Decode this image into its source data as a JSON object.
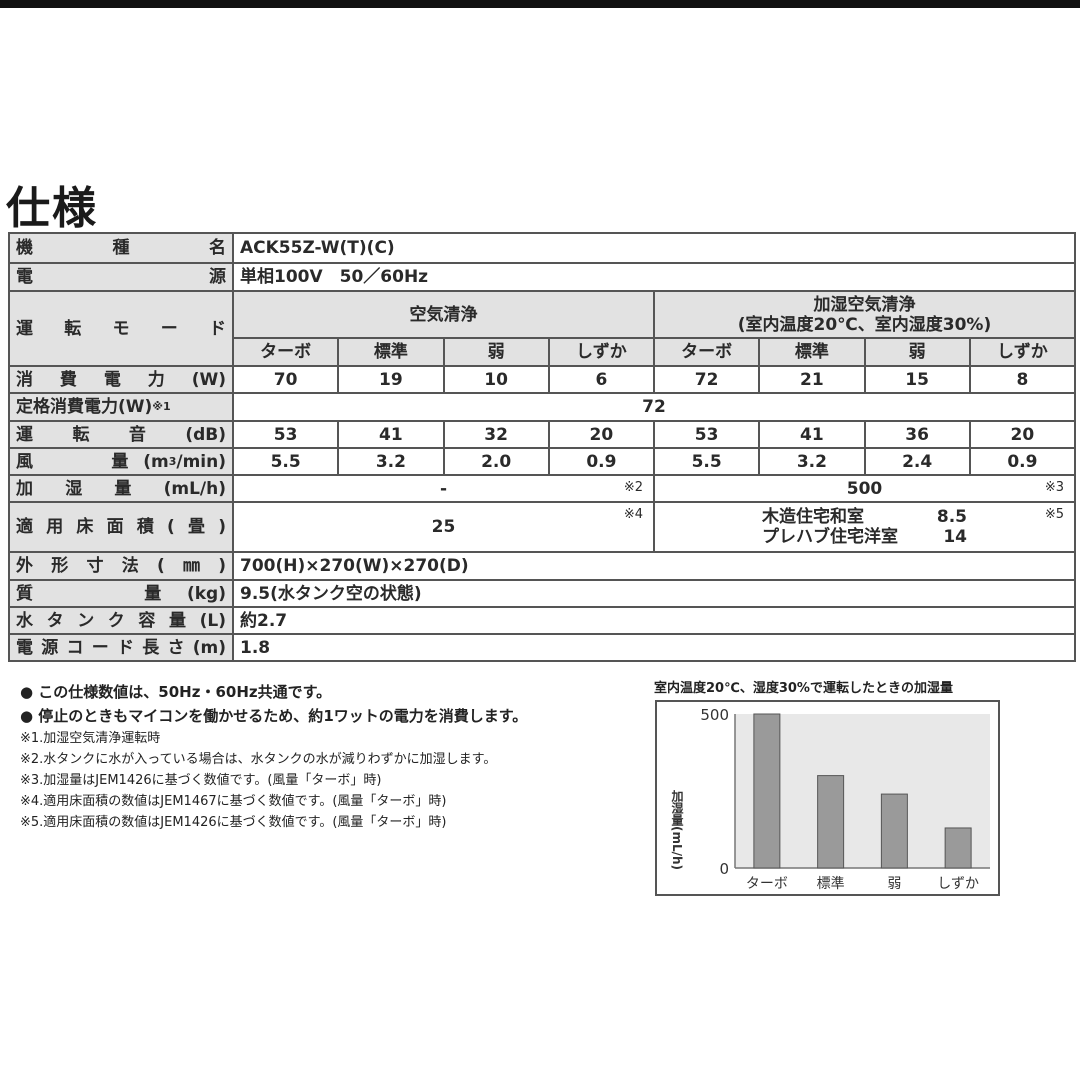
{
  "title": "仕様",
  "spec": {
    "model": {
      "label": "機　種　名",
      "value": "ACK55Z-W(T)(C)"
    },
    "power_source": {
      "label": "電　源",
      "value": "単相100V　50／60Hz"
    },
    "mode": {
      "label": "運　転　モ　ー　ド",
      "group1": "空気清浄",
      "group2_line1": "加湿空気清浄",
      "group2_line2": "(室内温度20℃、室内湿度30%)",
      "sub": [
        "ターボ",
        "標準",
        "弱",
        "しずか",
        "ターボ",
        "標準",
        "弱",
        "しずか"
      ]
    },
    "power_consumption": {
      "label": "消費電力(W)",
      "values": [
        "70",
        "19",
        "10",
        "6",
        "72",
        "21",
        "15",
        "8"
      ]
    },
    "rated_power": {
      "label": "定格消費電力(W)",
      "note": "※1",
      "value": "72"
    },
    "noise": {
      "label": "運転音(dB)",
      "values": [
        "53",
        "41",
        "32",
        "20",
        "53",
        "41",
        "36",
        "20"
      ]
    },
    "airflow": {
      "label_prefix": "風　　量(m",
      "label_sup": "3",
      "label_suffix": "/min)",
      "values": [
        "5.5",
        "3.2",
        "2.0",
        "0.9",
        "5.5",
        "3.2",
        "2.4",
        "0.9"
      ]
    },
    "humidify": {
      "label": "加湿量(mL/h)",
      "value1": "-",
      "note1": "※2",
      "value2": "500",
      "note2": "※3"
    },
    "area": {
      "label": "適用床面積(畳)",
      "value1": "25",
      "note1": "※4",
      "wood_label": "木造住宅和室",
      "wood_value": "8.5",
      "prefab_label": "プレハブ住宅洋室",
      "prefab_value": "14",
      "note2": "※5"
    },
    "dimensions": {
      "label": "外形寸法(㎜)",
      "value": "700(H)×270(W)×270(D)"
    },
    "weight": {
      "label": "質　　量(kg)",
      "value": "9.5(水タンク空の状態)"
    },
    "tank": {
      "label": "水タンク容量(L)",
      "value": "約2.7"
    },
    "cord": {
      "label": "電源コード長さ(m)",
      "value": "1.8"
    }
  },
  "notes": {
    "bullets": [
      "● この仕様数値は、50Hz・60Hz共通です。",
      "● 停止のときもマイコンを働かせるため、約1ワットの電力を消費します。"
    ],
    "footnotes": [
      "※1.加湿空気清浄運転時",
      "※2.水タンクに水が入っている場合は、水タンクの水が減りわずかに加湿します。",
      "※3.加湿量はJEM1426に基づく数値です。(風量「ターボ」時)",
      "※4.適用床面積の数値はJEM1467に基づく数値です。(風量「ターボ」時)",
      "※5.適用床面積の数値はJEM1426に基づく数値です。(風量「ターボ」時)"
    ]
  },
  "chart_data": {
    "type": "bar",
    "title": "室内温度20℃、湿度30%で運転したときの加湿量",
    "categories": [
      "ターボ",
      "標準",
      "弱",
      "しずか"
    ],
    "values": [
      500,
      300,
      240,
      130
    ],
    "ylabel": "加湿量(mL/h)",
    "ylim": [
      0,
      500
    ],
    "yticks": [
      "0",
      "500"
    ],
    "grid": false,
    "colors": {
      "bar": "#9a9a9a",
      "plot_bg": "#e8e8e8"
    }
  }
}
